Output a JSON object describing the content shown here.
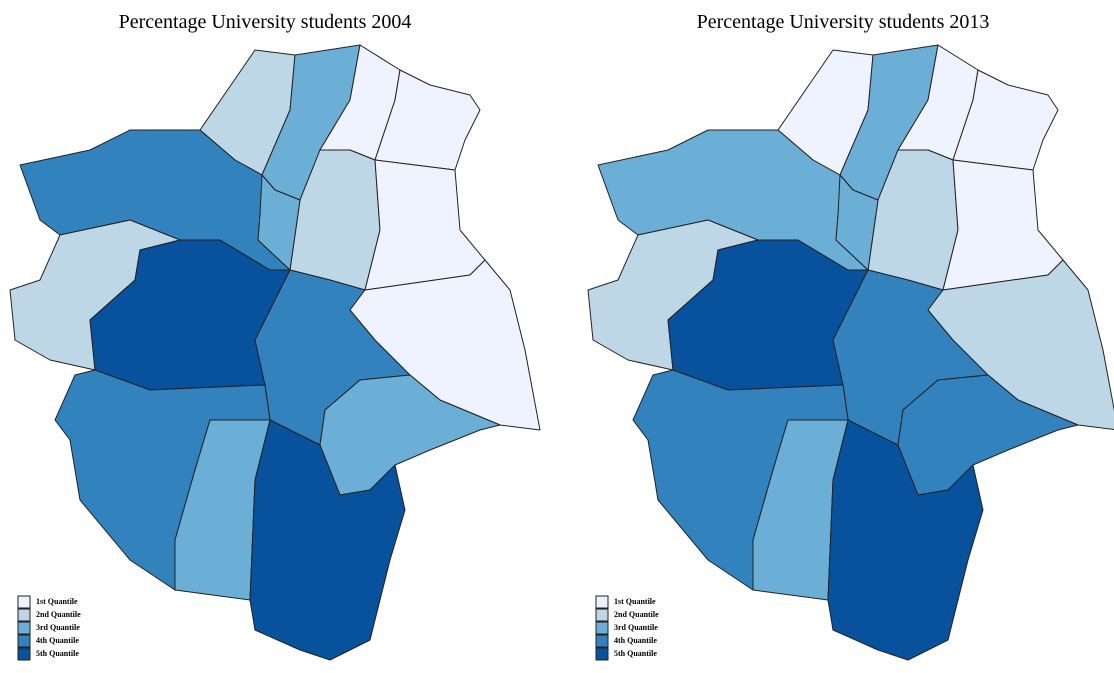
{
  "legend": {
    "labels": [
      "1st Quantile",
      "2nd Quantile",
      "3rd Quantile",
      "4th Quantile",
      "5th Quantile"
    ],
    "colors": [
      "#eff3ff",
      "#bdd7e7",
      "#6baed6",
      "#3182bd",
      "#08519c"
    ]
  },
  "maps": [
    {
      "title": "Percentage University students 2004",
      "quintiles": [
        2,
        3,
        1,
        1,
        2,
        1,
        4,
        3,
        2,
        5,
        4,
        1,
        3,
        4,
        3,
        5
      ]
    },
    {
      "title": "Percentage University students 2013",
      "quintiles": [
        1,
        3,
        1,
        1,
        2,
        1,
        3,
        3,
        2,
        5,
        4,
        2,
        4,
        4,
        3,
        5
      ]
    }
  ]
}
